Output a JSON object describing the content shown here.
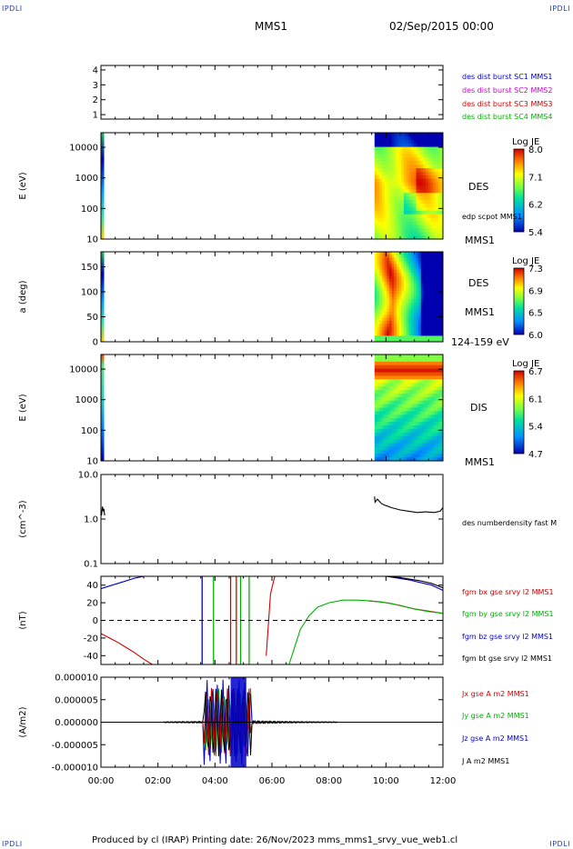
{
  "header": {
    "corner_tl": "IPDLI",
    "corner_tr": "IPDLI",
    "corner_bl": "IPDLI",
    "corner_br": "IPDLI",
    "spacecraft": "MMS1",
    "datetime": "02/Sep/2015 00:00"
  },
  "footer": {
    "text": "Produced by cl (IRAP)   Printing date: 26/Nov/2023   mms_mms1_srvy_vue_web1.cl"
  },
  "time_axis": {
    "ticks": [
      "00:00",
      "02:00",
      "04:00",
      "06:00",
      "08:00",
      "10:00",
      "12:00"
    ],
    "range_hours": [
      0,
      12
    ]
  },
  "colors": {
    "blue": "#0000c8",
    "magenta": "#d000d0",
    "red": "#d00000",
    "green": "#00b000",
    "black": "#000000"
  },
  "chart_data": [
    {
      "type": "line",
      "panel": "burst",
      "yticks": [
        "1",
        "2",
        "3",
        "4"
      ],
      "ylim": [
        0.7,
        4.3
      ],
      "legend": [
        {
          "label": "des dist burst SC1 MMS1",
          "color": "#0000c8"
        },
        {
          "label": "des dist burst SC2 MMS2",
          "color": "#d000d0"
        },
        {
          "label": "des dist burst SC3 MMS3",
          "color": "#d00000"
        },
        {
          "label": "des dist burst SC4 MMS4",
          "color": "#00b000"
        }
      ],
      "series": []
    },
    {
      "type": "heatmap",
      "panel": "des-energy",
      "ylabel": "E (eV)",
      "yticks": [
        "10",
        "100",
        "1000",
        "10000"
      ],
      "ylim": [
        10,
        30000
      ],
      "log_y": true,
      "side_labels": [
        "DES",
        "edp scpot MMS1",
        "MMS1"
      ],
      "colorbar": {
        "title": "Log JE",
        "ticks": [
          "8.0",
          "7.1",
          "6.2",
          "5.4"
        ]
      },
      "data_start_hour": 9.6
    },
    {
      "type": "heatmap",
      "panel": "des-pitch",
      "ylabel": "a (deg)",
      "yticks": [
        "0",
        "50",
        "100",
        "150"
      ],
      "ylim": [
        0,
        180
      ],
      "side_labels": [
        "DES",
        "MMS1",
        "124-159 eV"
      ],
      "colorbar": {
        "title": "Log JE",
        "ticks": [
          "7.3",
          "6.9",
          "6.5",
          "6.0"
        ]
      },
      "data_start_hour": 9.6
    },
    {
      "type": "heatmap",
      "panel": "dis-energy",
      "ylabel": "E (eV)",
      "yticks": [
        "10",
        "100",
        "1000",
        "10000"
      ],
      "ylim": [
        10,
        30000
      ],
      "log_y": true,
      "side_labels": [
        "DIS",
        "MMS1"
      ],
      "colorbar": {
        "title": "Log JE",
        "ticks": [
          "6.7",
          "6.1",
          "5.4",
          "4.7"
        ]
      },
      "data_start_hour": 9.6
    },
    {
      "type": "line",
      "panel": "density",
      "ylabel": "(cm^-3)",
      "yticks": [
        "0.1",
        "1.0",
        "10.0"
      ],
      "ylim": [
        0.1,
        10
      ],
      "log_y": true,
      "legend": [
        {
          "label": "des numberdensity fast M",
          "color": "#000000"
        }
      ],
      "series": [
        {
          "x": [
            0.02,
            0.05,
            0.08,
            0.1,
            0.13
          ],
          "y": [
            1.2,
            1.9,
            1.5,
            1.7,
            1.2
          ]
        },
        {
          "x": [
            9.6,
            9.62,
            9.7,
            9.85,
            10.0,
            10.2,
            10.5,
            10.8,
            11.1,
            11.4,
            11.7,
            11.9,
            12.0
          ],
          "y": [
            3.2,
            2.4,
            2.8,
            2.2,
            2.0,
            1.8,
            1.6,
            1.5,
            1.4,
            1.45,
            1.4,
            1.5,
            1.8
          ]
        }
      ]
    },
    {
      "type": "line",
      "panel": "magnetic-field",
      "ylabel": "(nT)",
      "yticks": [
        "-40",
        "-20",
        "0",
        "20",
        "40"
      ],
      "ylim": [
        -50,
        50
      ],
      "zero_line": "dashed",
      "legend": [
        {
          "label": "fgm bx gse srvy l2 MMS1",
          "color": "#d00000"
        },
        {
          "label": "fgm by gse srvy l2 MMS1",
          "color": "#00b000"
        },
        {
          "label": "fgm bz gse srvy l2 MMS1",
          "color": "#0000c8"
        },
        {
          "label": "fgm bt gse srvy l2 MMS1",
          "color": "#000000"
        }
      ],
      "series": [
        {
          "name": "fgm bx gse srvy l2 MMS1",
          "color": "#d00000",
          "x": [
            0,
            0.3,
            0.6,
            0.9,
            1.2,
            1.5,
            1.8
          ],
          "y": [
            -15,
            -20,
            -25,
            -31,
            -37,
            -44,
            -50
          ]
        },
        {
          "name": "fgm bx gse srvy l2 MMS1",
          "color": "#d00000",
          "x": [
            5.8,
            5.95,
            6.1
          ],
          "y": [
            -40,
            30,
            50
          ]
        },
        {
          "name": "fgm bx gse srvy l2 MMS1",
          "color": "#d00000",
          "x": [
            9.4,
            9.8,
            10.2,
            10.6,
            11.0,
            11.4,
            11.8,
            12.0
          ],
          "y": [
            22,
            21,
            19,
            16,
            13,
            11,
            9,
            8
          ]
        },
        {
          "name": "fgm by gse srvy l2 MMS1",
          "color": "#00b000",
          "x": [
            6.6,
            6.8,
            7.0,
            7.3,
            7.6,
            8.0,
            8.5,
            9.0,
            9.5,
            10.0,
            10.5,
            11.0,
            11.5,
            12.0
          ],
          "y": [
            -50,
            -30,
            -10,
            5,
            15,
            20,
            23,
            23,
            22,
            20,
            17,
            13,
            10,
            8
          ]
        },
        {
          "name": "fgm bz gse srvy l2 MMS1",
          "color": "#0000c8",
          "x": [
            0,
            0.4,
            0.8,
            1.2,
            1.5
          ],
          "y": [
            36,
            40,
            44,
            48,
            50
          ]
        },
        {
          "name": "fgm bz gse srvy l2 MMS1",
          "color": "#0000c8",
          "x": [
            10.0,
            10.4,
            10.8,
            11.2,
            11.6,
            12.0
          ],
          "y": [
            50,
            48,
            46,
            43,
            40,
            34
          ]
        },
        {
          "name": "fgm bt gse srvy l2 MMS1",
          "color": "#000000",
          "x": [
            10.0,
            10.4,
            10.8,
            11.2,
            11.6,
            12.0
          ],
          "y": [
            50,
            49,
            47,
            45,
            42,
            37
          ]
        }
      ],
      "vertical_spikes": [
        {
          "x": 3.55,
          "color": "#0000c8"
        },
        {
          "x": 3.95,
          "color": "#00b000"
        },
        {
          "x": 4.55,
          "color": "#d00000"
        },
        {
          "x": 4.75,
          "color": "#d00000"
        },
        {
          "x": 4.9,
          "color": "#00b000"
        },
        {
          "x": 5.2,
          "color": "#00b000"
        }
      ]
    },
    {
      "type": "line",
      "panel": "current-density",
      "ylabel": "(A/m2)",
      "yticks": [
        "-0.000010",
        "-0.000005",
        "0.000000",
        "0.000005",
        "0.000010"
      ],
      "ylim": [
        -1e-05,
        1e-05
      ],
      "zero_line": "solid",
      "legend": [
        {
          "label": "Jx gse A m2 MMS1",
          "color": "#d00000"
        },
        {
          "label": "Jy gse A m2 MMS1",
          "color": "#00b000"
        },
        {
          "label": "Jz gse A m2 MMS1",
          "color": "#0000c8"
        },
        {
          "label": "J A m2 MMS1",
          "color": "#000000"
        }
      ],
      "burst_window_hours": [
        3.6,
        5.3
      ]
    }
  ]
}
